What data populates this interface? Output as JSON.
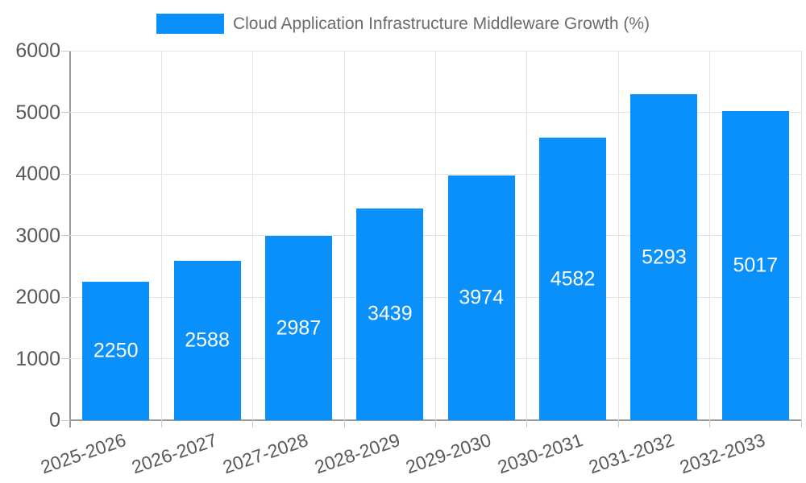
{
  "legend": {
    "label": "Cloud Application Infrastructure Middleware Growth (%)"
  },
  "chart_data": {
    "type": "bar",
    "title": "Cloud Application Infrastructure Middleware Growth (%)",
    "categories": [
      "2025-2026",
      "2026-2027",
      "2027-2028",
      "2028-2029",
      "2029-2030",
      "2030-2031",
      "2031-2032",
      "2032-2033"
    ],
    "values": [
      2250,
      2588,
      2987,
      3439,
      3974,
      4582,
      5293,
      5017
    ],
    "xlabel": "",
    "ylabel": "",
    "ylim": [
      0,
      6000
    ],
    "ytick_interval": 1000,
    "yticks": [
      0,
      1000,
      2000,
      3000,
      4000,
      5000,
      6000
    ],
    "grid": true,
    "legend_position": "top",
    "bar_color": "#0990fa",
    "value_label_color": "#ffffff",
    "axis_color": "#9b9b9b",
    "gridline_color": "#e4e4e4",
    "tick_label_color": "#595959"
  }
}
